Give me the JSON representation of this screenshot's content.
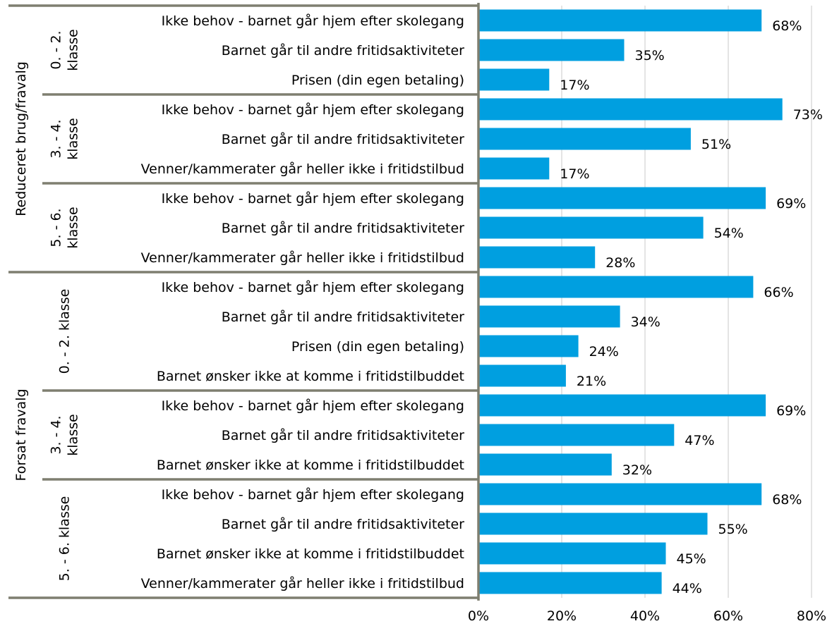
{
  "chart_data": {
    "type": "bar",
    "orientation": "horizontal",
    "bar_color": "#009fe0",
    "axis_color": "#7f7f70",
    "grid_color": "#c8c8c8",
    "grid": true,
    "xlim": [
      0,
      80
    ],
    "x_ticks": [
      "0%",
      "20%",
      "40%",
      "60%",
      "80%"
    ],
    "value_suffix": "%",
    "groups": [
      {
        "label": "Reduceret brug/fravalg",
        "subgroups": [
          {
            "label": [
              "0. - 2.",
              "klasse"
            ],
            "bars": [
              {
                "label": "Ikke behov - barnet går hjem efter skolegang",
                "value": 68
              },
              {
                "label": "Barnet går til andre fritidsaktiviteter",
                "value": 35
              },
              {
                "label": "Prisen (din egen betaling)",
                "value": 17
              }
            ]
          },
          {
            "label": [
              "3. - 4.",
              "klasse"
            ],
            "bars": [
              {
                "label": "Ikke behov - barnet går hjem efter skolegang",
                "value": 73
              },
              {
                "label": "Barnet går til andre fritidsaktiviteter",
                "value": 51
              },
              {
                "label": "Venner/kammerater går heller ikke i fritidstilbud",
                "value": 17
              }
            ]
          },
          {
            "label": [
              "5. - 6.",
              "klasse"
            ],
            "bars": [
              {
                "label": "Ikke behov - barnet går hjem efter skolegang",
                "value": 69
              },
              {
                "label": "Barnet går til andre fritidsaktiviteter",
                "value": 54
              },
              {
                "label": "Venner/kammerater går heller ikke i fritidstilbud",
                "value": 28
              }
            ]
          }
        ]
      },
      {
        "label": "Forsat fravalg",
        "subgroups": [
          {
            "label": [
              "0. - 2. klasse"
            ],
            "bars": [
              {
                "label": "Ikke behov - barnet går hjem efter skolegang",
                "value": 66
              },
              {
                "label": "Barnet går til andre fritidsaktiviteter",
                "value": 34
              },
              {
                "label": "Prisen (din egen betaling)",
                "value": 24
              },
              {
                "label": "Barnet ønsker ikke at komme i fritidstilbuddet",
                "value": 21
              }
            ]
          },
          {
            "label": [
              "3. - 4.",
              "klasse"
            ],
            "bars": [
              {
                "label": "Ikke behov - barnet går hjem efter skolegang",
                "value": 69
              },
              {
                "label": "Barnet går til andre fritidsaktiviteter",
                "value": 47
              },
              {
                "label": "Barnet ønsker ikke at komme i fritidstilbuddet",
                "value": 32
              }
            ]
          },
          {
            "label": [
              "5. - 6. klasse"
            ],
            "bars": [
              {
                "label": "Ikke behov - barnet går hjem efter skolegang",
                "value": 68
              },
              {
                "label": "Barnet går til andre fritidsaktiviteter",
                "value": 55
              },
              {
                "label": "Barnet ønsker ikke at komme i fritidstilbuddet",
                "value": 45
              },
              {
                "label": "Venner/kammerater går heller ikke i fritidstilbud",
                "value": 44
              }
            ]
          }
        ]
      }
    ]
  }
}
